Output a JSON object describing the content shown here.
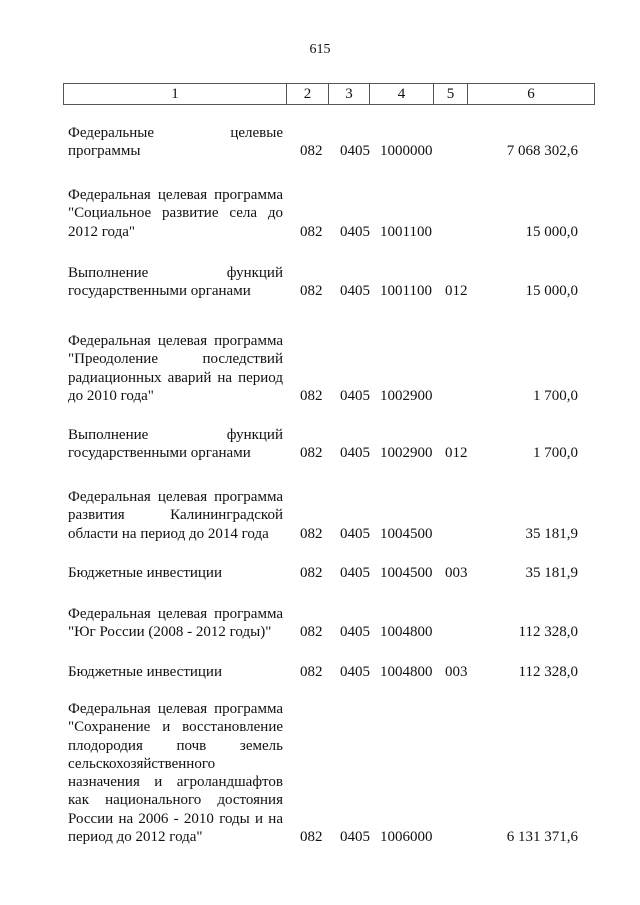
{
  "page_number": "615",
  "header_columns": [
    "1",
    "2",
    "3",
    "4",
    "5",
    "6"
  ],
  "rows": [
    {
      "lines": [
        "Федеральные целевые",
        "программы"
      ],
      "c2": "082",
      "c3": "0405",
      "c4": "1000000",
      "c5": "",
      "c6": "7 068 302,6"
    },
    {
      "lines": [
        "Федеральная целевая программа",
        "\"Социальное развитие села до",
        "2012 года\""
      ],
      "c2": "082",
      "c3": "0405",
      "c4": "1001100",
      "c5": "",
      "c6": "15 000,0"
    },
    {
      "lines": [
        "Выполнение функций",
        "государственными органами"
      ],
      "c2": "082",
      "c3": "0405",
      "c4": "1001100",
      "c5": "012",
      "c6": "15 000,0"
    },
    {
      "lines": [
        "Федеральная целевая программа",
        "\"Преодоление последствий",
        "радиационных аварий на период",
        "до 2010 года\""
      ],
      "c2": "082",
      "c3": "0405",
      "c4": "1002900",
      "c5": "",
      "c6": "1 700,0"
    },
    {
      "lines": [
        "Выполнение функций",
        "государственными органами"
      ],
      "c2": "082",
      "c3": "0405",
      "c4": "1002900",
      "c5": "012",
      "c6": "1 700,0"
    },
    {
      "lines": [
        "Федеральная целевая программа",
        "развития Калининградской",
        "области на период до 2014 года"
      ],
      "c2": "082",
      "c3": "0405",
      "c4": "1004500",
      "c5": "",
      "c6": "35 181,9"
    },
    {
      "lines": [
        "Бюджетные инвестиции"
      ],
      "c2": "082",
      "c3": "0405",
      "c4": "1004500",
      "c5": "003",
      "c6": "35 181,9"
    },
    {
      "lines": [
        "Федеральная целевая программа",
        "\"Юг России (2008 - 2012 годы)\""
      ],
      "c2": "082",
      "c3": "0405",
      "c4": "1004800",
      "c5": "",
      "c6": "112 328,0"
    },
    {
      "lines": [
        "Бюджетные инвестиции"
      ],
      "c2": "082",
      "c3": "0405",
      "c4": "1004800",
      "c5": "003",
      "c6": "112 328,0"
    },
    {
      "lines": [
        "Федеральная целевая программа",
        "\"Сохранение и восстановление",
        "плодородия почв земель",
        "сельскохозяйственного",
        "назначения и агроландшафтов",
        "как национального достояния",
        "России на 2006 - 2010 годы и на",
        "период до 2012 года\""
      ],
      "c2": "082",
      "c3": "0405",
      "c4": "1006000",
      "c5": "",
      "c6": "6 131 371,6"
    }
  ]
}
